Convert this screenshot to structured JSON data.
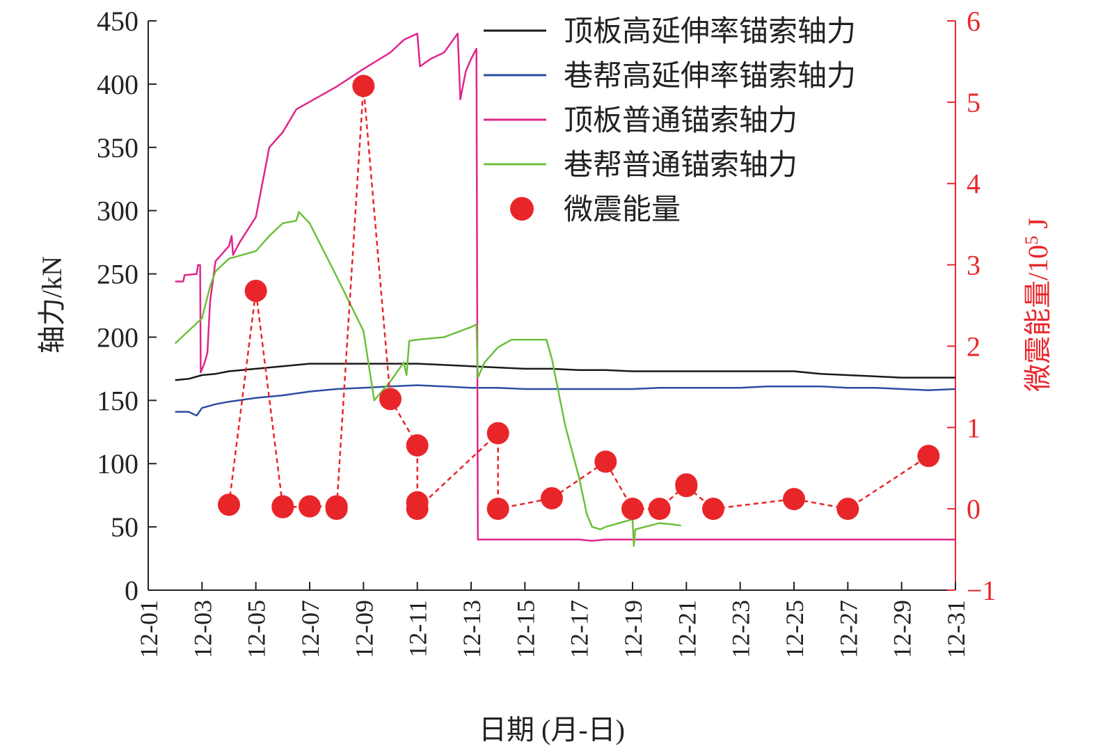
{
  "chart_data": {
    "type": "line",
    "xlabel": "日期 (月-日)",
    "ylabel": "轴力/kN",
    "y2label_main": "微震能量/10",
    "y2label_sup": "5",
    "y2label_unit": " J",
    "x_ticks": [
      "12-01",
      "12-03",
      "12-05",
      "12-07",
      "12-09",
      "12-11",
      "12-13",
      "12-15",
      "12-17",
      "12-19",
      "12-21",
      "12-23",
      "12-25",
      "12-27",
      "12-29",
      "12-31"
    ],
    "xlim": [
      1,
      31
    ],
    "ylim": [
      0,
      450
    ],
    "y_ticks": [
      0,
      50,
      100,
      150,
      200,
      250,
      300,
      350,
      400,
      450
    ],
    "y2lim": [
      -1,
      6
    ],
    "y2_ticks": [
      "−1",
      "0",
      "1",
      "2",
      "3",
      "4",
      "5",
      "6"
    ],
    "y2_tick_values": [
      -1,
      0,
      1,
      2,
      3,
      4,
      5,
      6
    ],
    "legend_position": "top-right",
    "series": [
      {
        "name": "顶板高延伸率锚索轴力",
        "color": "#1a1a1a",
        "axis": "left",
        "style": "solid",
        "points": [
          [
            2.0,
            166
          ],
          [
            2.5,
            167
          ],
          [
            3.0,
            170
          ],
          [
            3.5,
            171
          ],
          [
            4.0,
            173
          ],
          [
            5.0,
            175
          ],
          [
            6.0,
            177
          ],
          [
            7.0,
            179
          ],
          [
            8.0,
            179
          ],
          [
            9.0,
            179
          ],
          [
            10.0,
            179
          ],
          [
            11.0,
            179
          ],
          [
            12.0,
            178
          ],
          [
            13.0,
            177
          ],
          [
            14.0,
            176
          ],
          [
            15.0,
            175
          ],
          [
            16.0,
            175
          ],
          [
            17.0,
            174
          ],
          [
            18.0,
            174
          ],
          [
            19.0,
            173
          ],
          [
            20.0,
            173
          ],
          [
            21.0,
            173
          ],
          [
            22.0,
            173
          ],
          [
            23.0,
            173
          ],
          [
            24.0,
            173
          ],
          [
            25.0,
            173
          ],
          [
            26.0,
            171
          ],
          [
            27.0,
            170
          ],
          [
            28.0,
            169
          ],
          [
            29.0,
            168
          ],
          [
            30.0,
            168
          ],
          [
            31.0,
            168
          ]
        ]
      },
      {
        "name": "巷帮高延伸率锚索轴力",
        "color": "#2b4ea2",
        "axis": "left",
        "style": "solid",
        "points": [
          [
            2.0,
            141
          ],
          [
            2.5,
            141
          ],
          [
            2.8,
            138
          ],
          [
            3.0,
            144
          ],
          [
            3.5,
            147
          ],
          [
            4.0,
            149
          ],
          [
            5.0,
            152
          ],
          [
            6.0,
            154
          ],
          [
            7.0,
            157
          ],
          [
            8.0,
            159
          ],
          [
            9.0,
            160
          ],
          [
            10.0,
            161
          ],
          [
            11.0,
            162
          ],
          [
            12.0,
            161
          ],
          [
            13.0,
            160
          ],
          [
            14.0,
            160
          ],
          [
            15.0,
            159
          ],
          [
            16.0,
            159
          ],
          [
            17.0,
            159
          ],
          [
            18.0,
            159
          ],
          [
            19.0,
            159
          ],
          [
            20.0,
            160
          ],
          [
            21.0,
            160
          ],
          [
            22.0,
            160
          ],
          [
            23.0,
            160
          ],
          [
            24.0,
            161
          ],
          [
            25.0,
            161
          ],
          [
            26.0,
            161
          ],
          [
            27.0,
            160
          ],
          [
            28.0,
            160
          ],
          [
            29.0,
            159
          ],
          [
            30.0,
            158
          ],
          [
            31.0,
            159
          ]
        ]
      },
      {
        "name": "顶板普通锚索轴力",
        "color": "#e0258a",
        "axis": "left",
        "style": "solid",
        "points": [
          [
            2.0,
            244
          ],
          [
            2.3,
            244
          ],
          [
            2.35,
            249
          ],
          [
            2.8,
            250
          ],
          [
            2.85,
            257
          ],
          [
            2.93,
            257
          ],
          [
            2.95,
            172
          ],
          [
            3.1,
            180
          ],
          [
            3.2,
            188
          ],
          [
            3.3,
            228
          ],
          [
            3.5,
            260
          ],
          [
            4.0,
            272
          ],
          [
            4.1,
            280
          ],
          [
            4.15,
            265
          ],
          [
            4.4,
            275
          ],
          [
            5.0,
            295
          ],
          [
            5.5,
            350
          ],
          [
            6.0,
            362
          ],
          [
            6.5,
            380
          ],
          [
            7.0,
            386
          ],
          [
            8.0,
            398
          ],
          [
            9.0,
            412
          ],
          [
            10.0,
            425
          ],
          [
            10.5,
            435
          ],
          [
            11.0,
            440
          ],
          [
            11.1,
            414
          ],
          [
            11.5,
            420
          ],
          [
            12.0,
            425
          ],
          [
            12.5,
            440
          ],
          [
            12.6,
            388
          ],
          [
            12.8,
            410
          ],
          [
            13.0,
            420
          ],
          [
            13.2,
            428
          ],
          [
            13.25,
            40
          ],
          [
            14.0,
            40
          ],
          [
            15.0,
            40
          ],
          [
            16.0,
            40
          ],
          [
            17.0,
            40
          ],
          [
            17.5,
            39
          ],
          [
            18.0,
            40
          ],
          [
            19.0,
            40
          ],
          [
            20.0,
            40
          ],
          [
            21.0,
            40
          ],
          [
            22.0,
            40
          ],
          [
            23.0,
            40
          ],
          [
            24.0,
            40
          ],
          [
            25.0,
            40
          ],
          [
            26.0,
            40
          ],
          [
            27.0,
            40
          ],
          [
            28.0,
            40
          ],
          [
            29.0,
            40
          ],
          [
            30.0,
            40
          ],
          [
            31.0,
            40
          ]
        ]
      },
      {
        "name": "巷帮普通锚索轴力",
        "color": "#6cbf3c",
        "axis": "left",
        "style": "solid",
        "points": [
          [
            2.0,
            195
          ],
          [
            2.5,
            205
          ],
          [
            3.0,
            215
          ],
          [
            3.3,
            240
          ],
          [
            3.5,
            252
          ],
          [
            4.0,
            262
          ],
          [
            5.0,
            268
          ],
          [
            5.5,
            280
          ],
          [
            6.0,
            290
          ],
          [
            6.5,
            292
          ],
          [
            6.6,
            299
          ],
          [
            7.0,
            290
          ],
          [
            8.0,
            248
          ],
          [
            9.0,
            205
          ],
          [
            9.4,
            150
          ],
          [
            10.0,
            165
          ],
          [
            10.5,
            180
          ],
          [
            10.6,
            170
          ],
          [
            10.7,
            197
          ],
          [
            11.0,
            198
          ],
          [
            12.0,
            200
          ],
          [
            13.0,
            208
          ],
          [
            13.2,
            210
          ],
          [
            13.25,
            168
          ],
          [
            13.5,
            180
          ],
          [
            14.0,
            192
          ],
          [
            14.5,
            198
          ],
          [
            15.0,
            198
          ],
          [
            15.8,
            198
          ],
          [
            16.0,
            183
          ],
          [
            16.5,
            130
          ],
          [
            17.0,
            90
          ],
          [
            17.3,
            60
          ],
          [
            17.5,
            50
          ],
          [
            17.8,
            48
          ],
          [
            18.0,
            50
          ],
          [
            19.0,
            56
          ],
          [
            19.05,
            35
          ],
          [
            19.1,
            48
          ],
          [
            20.0,
            53
          ],
          [
            20.5,
            52
          ],
          [
            20.8,
            51
          ]
        ]
      },
      {
        "name": "微震能量",
        "color": "#e8262a",
        "axis": "right",
        "style": "dashed-markers",
        "points": [
          [
            4,
            0.05
          ],
          [
            5,
            2.68
          ],
          [
            6,
            0.03
          ],
          [
            6,
            0.02
          ],
          [
            7,
            0.03
          ],
          [
            8,
            0.03
          ],
          [
            8,
            0.0
          ],
          [
            9,
            5.2
          ],
          [
            10,
            1.35
          ],
          [
            11,
            0.78
          ],
          [
            11,
            0.08
          ],
          [
            11,
            0.0
          ],
          [
            14,
            0.93
          ],
          [
            14,
            0.0
          ],
          [
            16,
            0.13
          ],
          [
            18,
            0.58
          ],
          [
            19,
            0.0
          ],
          [
            20,
            0.0
          ],
          [
            21,
            0.3
          ],
          [
            21,
            0.28
          ],
          [
            22,
            0.0
          ],
          [
            25,
            0.12
          ],
          [
            27,
            0.0
          ],
          [
            30,
            0.65
          ]
        ]
      }
    ]
  }
}
